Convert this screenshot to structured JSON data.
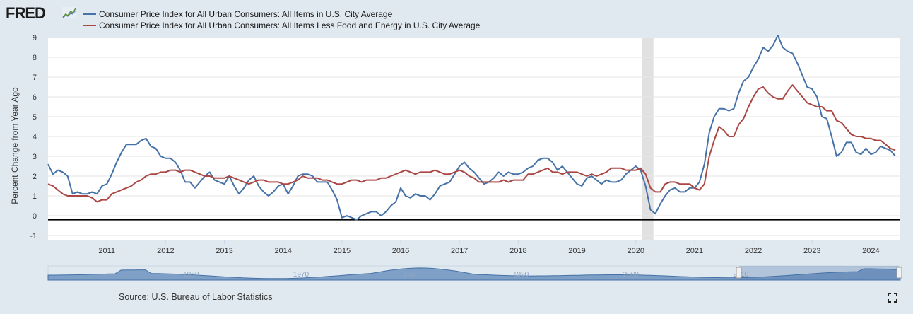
{
  "logo": {
    "text": "FRED"
  },
  "source": "Source: U.S. Bureau of Labor Statistics",
  "colors": {
    "series1": "#4572a7",
    "series2": "#aa4643",
    "background": "#e1e9f0",
    "plot": "#ffffff",
    "recession": "#e1e1e1",
    "navigator": "#4572a7"
  },
  "navigator": {
    "labels": [
      "1960",
      "1970",
      "1980",
      "1990",
      "2000",
      "2010",
      "2020"
    ]
  },
  "chart_data": {
    "type": "line",
    "title": "",
    "xlabel": "",
    "ylabel": "Percent Change from Year Ago",
    "xlim": [
      2010.0,
      2024.5
    ],
    "ylim": [
      -1,
      9
    ],
    "yticks": [
      -1,
      0,
      1,
      2,
      3,
      4,
      5,
      6,
      7,
      8,
      9
    ],
    "xticks": [
      "2011",
      "2012",
      "2013",
      "2014",
      "2015",
      "2016",
      "2017",
      "2018",
      "2019",
      "2020",
      "2021",
      "2022",
      "2023",
      "2024"
    ],
    "reference_line": -0.2,
    "recession": [
      2020.1,
      2020.3
    ],
    "series": [
      {
        "name": "Consumer Price Index for All Urban Consumers: All Items in U.S. City Average",
        "x": [
          2010.0,
          2010.083,
          2010.167,
          2010.25,
          2010.333,
          2010.417,
          2010.5,
          2010.583,
          2010.667,
          2010.75,
          2010.833,
          2010.917,
          2011.0,
          2011.083,
          2011.167,
          2011.25,
          2011.333,
          2011.417,
          2011.5,
          2011.583,
          2011.667,
          2011.75,
          2011.833,
          2011.917,
          2012.0,
          2012.083,
          2012.167,
          2012.25,
          2012.333,
          2012.417,
          2012.5,
          2012.583,
          2012.667,
          2012.75,
          2012.833,
          2012.917,
          2013.0,
          2013.083,
          2013.167,
          2013.25,
          2013.333,
          2013.417,
          2013.5,
          2013.583,
          2013.667,
          2013.75,
          2013.833,
          2013.917,
          2014.0,
          2014.083,
          2014.167,
          2014.25,
          2014.333,
          2014.417,
          2014.5,
          2014.583,
          2014.667,
          2014.75,
          2014.833,
          2014.917,
          2015.0,
          2015.083,
          2015.167,
          2015.25,
          2015.333,
          2015.417,
          2015.5,
          2015.583,
          2015.667,
          2015.75,
          2015.833,
          2015.917,
          2016.0,
          2016.083,
          2016.167,
          2016.25,
          2016.333,
          2016.417,
          2016.5,
          2016.583,
          2016.667,
          2016.75,
          2016.833,
          2016.917,
          2017.0,
          2017.083,
          2017.167,
          2017.25,
          2017.333,
          2017.417,
          2017.5,
          2017.583,
          2017.667,
          2017.75,
          2017.833,
          2017.917,
          2018.0,
          2018.083,
          2018.167,
          2018.25,
          2018.333,
          2018.417,
          2018.5,
          2018.583,
          2018.667,
          2018.75,
          2018.833,
          2018.917,
          2019.0,
          2019.083,
          2019.167,
          2019.25,
          2019.333,
          2019.417,
          2019.5,
          2019.583,
          2019.667,
          2019.75,
          2019.833,
          2019.917,
          2020.0,
          2020.083,
          2020.167,
          2020.25,
          2020.333,
          2020.417,
          2020.5,
          2020.583,
          2020.667,
          2020.75,
          2020.833,
          2020.917,
          2021.0,
          2021.083,
          2021.167,
          2021.25,
          2021.333,
          2021.417,
          2021.5,
          2021.583,
          2021.667,
          2021.75,
          2021.833,
          2021.917,
          2022.0,
          2022.083,
          2022.167,
          2022.25,
          2022.333,
          2022.417,
          2022.5,
          2022.583,
          2022.667,
          2022.75,
          2022.833,
          2022.917,
          2023.0,
          2023.083,
          2023.167,
          2023.25,
          2023.333,
          2023.417,
          2023.5,
          2023.583,
          2023.667,
          2023.75,
          2023.833,
          2023.917,
          2024.0,
          2024.083,
          2024.167,
          2024.25,
          2024.333,
          2024.417
        ],
        "values": [
          2.6,
          2.1,
          2.3,
          2.2,
          2.0,
          1.1,
          1.2,
          1.1,
          1.1,
          1.2,
          1.1,
          1.5,
          1.6,
          2.1,
          2.7,
          3.2,
          3.6,
          3.6,
          3.6,
          3.8,
          3.9,
          3.5,
          3.4,
          3.0,
          2.9,
          2.9,
          2.7,
          2.3,
          1.7,
          1.7,
          1.4,
          1.7,
          2.0,
          2.2,
          1.8,
          1.7,
          1.6,
          2.0,
          1.5,
          1.1,
          1.4,
          1.8,
          2.0,
          1.5,
          1.2,
          1.0,
          1.2,
          1.5,
          1.6,
          1.1,
          1.5,
          2.0,
          2.1,
          2.1,
          2.0,
          1.7,
          1.7,
          1.7,
          1.3,
          0.8,
          -0.1,
          0.0,
          -0.1,
          -0.2,
          0.0,
          0.1,
          0.2,
          0.2,
          0.0,
          0.2,
          0.5,
          0.7,
          1.4,
          1.0,
          0.9,
          1.1,
          1.0,
          1.0,
          0.8,
          1.1,
          1.5,
          1.6,
          1.7,
          2.1,
          2.5,
          2.7,
          2.4,
          2.2,
          1.9,
          1.6,
          1.7,
          1.9,
          2.2,
          2.0,
          2.2,
          2.1,
          2.1,
          2.2,
          2.4,
          2.5,
          2.8,
          2.9,
          2.9,
          2.7,
          2.3,
          2.5,
          2.2,
          1.9,
          1.6,
          1.5,
          1.9,
          2.0,
          1.8,
          1.6,
          1.8,
          1.7,
          1.7,
          1.8,
          2.1,
          2.3,
          2.5,
          2.3,
          1.5,
          0.3,
          0.1,
          0.6,
          1.0,
          1.3,
          1.4,
          1.2,
          1.2,
          1.4,
          1.4,
          1.7,
          2.6,
          4.2,
          5.0,
          5.4,
          5.4,
          5.3,
          5.4,
          6.2,
          6.8,
          7.0,
          7.5,
          7.9,
          8.5,
          8.3,
          8.6,
          9.1,
          8.5,
          8.3,
          8.2,
          7.7,
          7.1,
          6.5,
          6.4,
          6.0,
          5.0,
          4.9,
          4.0,
          3.0,
          3.2,
          3.7,
          3.7,
          3.2,
          3.1,
          3.4,
          3.1,
          3.2,
          3.5,
          3.4,
          3.3,
          3.0
        ],
        "color_key": "series1"
      },
      {
        "name": "Consumer Price Index for All Urban Consumers: All Items Less Food and Energy in U.S. City Average",
        "x": [
          2010.0,
          2010.083,
          2010.167,
          2010.25,
          2010.333,
          2010.417,
          2010.5,
          2010.583,
          2010.667,
          2010.75,
          2010.833,
          2010.917,
          2011.0,
          2011.083,
          2011.167,
          2011.25,
          2011.333,
          2011.417,
          2011.5,
          2011.583,
          2011.667,
          2011.75,
          2011.833,
          2011.917,
          2012.0,
          2012.083,
          2012.167,
          2012.25,
          2012.333,
          2012.417,
          2012.5,
          2012.583,
          2012.667,
          2012.75,
          2012.833,
          2012.917,
          2013.0,
          2013.083,
          2013.167,
          2013.25,
          2013.333,
          2013.417,
          2013.5,
          2013.583,
          2013.667,
          2013.75,
          2013.833,
          2013.917,
          2014.0,
          2014.083,
          2014.167,
          2014.25,
          2014.333,
          2014.417,
          2014.5,
          2014.583,
          2014.667,
          2014.75,
          2014.833,
          2014.917,
          2015.0,
          2015.083,
          2015.167,
          2015.25,
          2015.333,
          2015.417,
          2015.5,
          2015.583,
          2015.667,
          2015.75,
          2015.833,
          2015.917,
          2016.0,
          2016.083,
          2016.167,
          2016.25,
          2016.333,
          2016.417,
          2016.5,
          2016.583,
          2016.667,
          2016.75,
          2016.833,
          2016.917,
          2017.0,
          2017.083,
          2017.167,
          2017.25,
          2017.333,
          2017.417,
          2017.5,
          2017.583,
          2017.667,
          2017.75,
          2017.833,
          2017.917,
          2018.0,
          2018.083,
          2018.167,
          2018.25,
          2018.333,
          2018.417,
          2018.5,
          2018.583,
          2018.667,
          2018.75,
          2018.833,
          2018.917,
          2019.0,
          2019.083,
          2019.167,
          2019.25,
          2019.333,
          2019.417,
          2019.5,
          2019.583,
          2019.667,
          2019.75,
          2019.833,
          2019.917,
          2020.0,
          2020.083,
          2020.167,
          2020.25,
          2020.333,
          2020.417,
          2020.5,
          2020.583,
          2020.667,
          2020.75,
          2020.833,
          2020.917,
          2021.0,
          2021.083,
          2021.167,
          2021.25,
          2021.333,
          2021.417,
          2021.5,
          2021.583,
          2021.667,
          2021.75,
          2021.833,
          2021.917,
          2022.0,
          2022.083,
          2022.167,
          2022.25,
          2022.333,
          2022.417,
          2022.5,
          2022.583,
          2022.667,
          2022.75,
          2022.833,
          2022.917,
          2023.0,
          2023.083,
          2023.167,
          2023.25,
          2023.333,
          2023.417,
          2023.5,
          2023.583,
          2023.667,
          2023.75,
          2023.833,
          2023.917,
          2024.0,
          2024.083,
          2024.167,
          2024.25,
          2024.333,
          2024.417
        ],
        "values": [
          1.6,
          1.5,
          1.3,
          1.1,
          1.0,
          1.0,
          1.0,
          1.0,
          1.0,
          0.9,
          0.7,
          0.8,
          0.8,
          1.1,
          1.2,
          1.3,
          1.4,
          1.5,
          1.7,
          1.8,
          2.0,
          2.1,
          2.1,
          2.2,
          2.2,
          2.3,
          2.3,
          2.2,
          2.3,
          2.3,
          2.2,
          2.1,
          2.0,
          2.0,
          1.9,
          1.9,
          1.9,
          2.0,
          1.9,
          1.8,
          1.7,
          1.6,
          1.7,
          1.8,
          1.8,
          1.7,
          1.7,
          1.7,
          1.6,
          1.6,
          1.7,
          1.8,
          2.0,
          1.9,
          1.9,
          1.9,
          1.8,
          1.8,
          1.7,
          1.6,
          1.6,
          1.7,
          1.8,
          1.8,
          1.7,
          1.8,
          1.8,
          1.8,
          1.9,
          1.9,
          2.0,
          2.1,
          2.2,
          2.3,
          2.2,
          2.1,
          2.2,
          2.2,
          2.2,
          2.3,
          2.2,
          2.1,
          2.1,
          2.2,
          2.3,
          2.2,
          2.0,
          1.9,
          1.7,
          1.7,
          1.7,
          1.7,
          1.7,
          1.8,
          1.7,
          1.8,
          1.8,
          1.8,
          2.1,
          2.1,
          2.2,
          2.3,
          2.4,
          2.2,
          2.2,
          2.1,
          2.2,
          2.2,
          2.2,
          2.1,
          2.0,
          2.1,
          2.0,
          2.1,
          2.2,
          2.4,
          2.4,
          2.4,
          2.3,
          2.3,
          2.3,
          2.4,
          2.1,
          1.4,
          1.2,
          1.2,
          1.6,
          1.7,
          1.7,
          1.6,
          1.6,
          1.6,
          1.4,
          1.3,
          1.6,
          3.0,
          3.8,
          4.5,
          4.3,
          4.0,
          4.0,
          4.6,
          4.9,
          5.5,
          6.0,
          6.4,
          6.5,
          6.2,
          6.0,
          5.9,
          5.9,
          6.3,
          6.6,
          6.3,
          6.0,
          5.7,
          5.6,
          5.5,
          5.5,
          5.3,
          5.3,
          4.8,
          4.7,
          4.4,
          4.1,
          4.0,
          4.0,
          3.9,
          3.9,
          3.8,
          3.8,
          3.6,
          3.4,
          3.3
        ],
        "color_key": "series2"
      }
    ]
  }
}
